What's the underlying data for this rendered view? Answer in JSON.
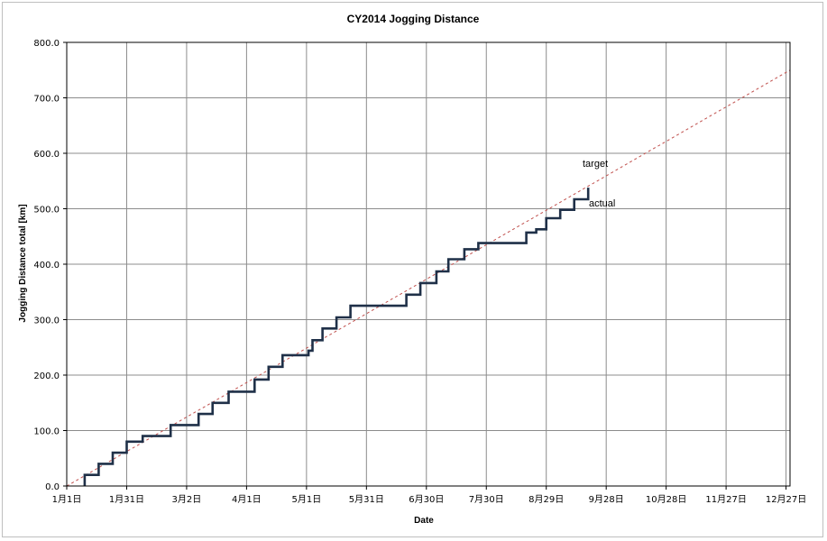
{
  "chart_data": {
    "type": "line",
    "title": "CY2014 Jogging Distance",
    "xlabel": "Date",
    "ylabel": "Jogging Distance total [km]",
    "ylim": [
      0,
      800
    ],
    "xlim_day_of_year": [
      0,
      362
    ],
    "y_ticks": [
      "0.0",
      "100.0",
      "200.0",
      "300.0",
      "400.0",
      "500.0",
      "600.0",
      "700.0",
      "800.0"
    ],
    "x_ticks": [
      {
        "label": "1月1日",
        "day": 0
      },
      {
        "label": "1月31日",
        "day": 30
      },
      {
        "label": "3月2日",
        "day": 60
      },
      {
        "label": "4月1日",
        "day": 90
      },
      {
        "label": "5月1日",
        "day": 120
      },
      {
        "label": "5月31日",
        "day": 150
      },
      {
        "label": "6月30日",
        "day": 180
      },
      {
        "label": "7月30日",
        "day": 210
      },
      {
        "label": "8月29日",
        "day": 240
      },
      {
        "label": "9月28日",
        "day": 270
      },
      {
        "label": "10月28日",
        "day": 300
      },
      {
        "label": "11月27日",
        "day": 330
      },
      {
        "label": "12月27日",
        "day": 360
      }
    ],
    "grid": true,
    "series": [
      {
        "name": "target",
        "color": "#c0504d",
        "style": "dashed",
        "x_day": [
          0,
          362
        ],
        "y": [
          0,
          750
        ]
      },
      {
        "name": "actual",
        "color": "#1f3048",
        "style": "step",
        "x_day": [
          9,
          9,
          16,
          16,
          23,
          23,
          30,
          30,
          38,
          38,
          52,
          52,
          66,
          66,
          73,
          73,
          81,
          81,
          94,
          94,
          101,
          101,
          108,
          108,
          121,
          121,
          123,
          123,
          128,
          128,
          135,
          135,
          142,
          142,
          170,
          170,
          177,
          177,
          185,
          185,
          191,
          191,
          199,
          199,
          206,
          206,
          215,
          215,
          230,
          230,
          235,
          235,
          240,
          240,
          247,
          247,
          254,
          254,
          261,
          261
        ],
        "y": [
          0,
          20,
          20,
          40,
          40,
          60,
          60,
          80,
          80,
          90,
          90,
          110,
          110,
          130,
          130,
          150,
          150,
          170,
          170,
          192,
          192,
          215,
          215,
          236,
          236,
          244,
          244,
          263,
          263,
          284,
          284,
          304,
          304,
          325,
          325,
          345,
          345,
          366,
          366,
          387,
          387,
          409,
          409,
          427,
          427,
          438,
          438,
          438,
          438,
          457,
          457,
          463,
          463,
          483,
          483,
          498,
          498,
          517,
          517,
          538
        ]
      }
    ],
    "annotations": {
      "target_label": "target",
      "actual_label": "actual"
    }
  }
}
